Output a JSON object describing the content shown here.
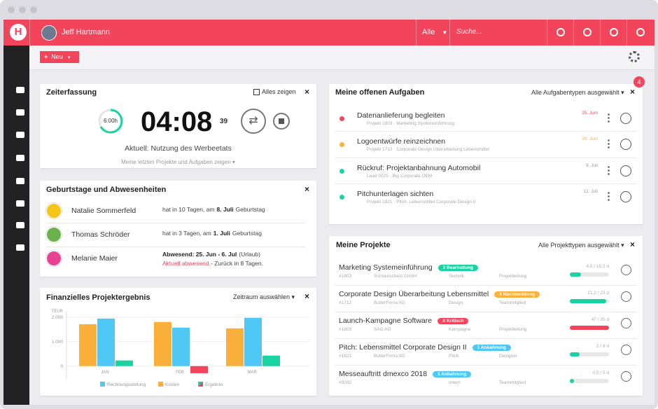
{
  "header": {
    "user": "Jeff Hartmann",
    "filter": "Alle",
    "search": "Suche..."
  },
  "toolbar": {
    "new_button": "Neu"
  },
  "time_tracking": {
    "title": "Zeiterfassung",
    "show_all": "Alles zeigen",
    "target": "6:00h",
    "time": "04:08",
    "seconds": "39",
    "current": "Aktuell: Nutzung des Werbeetats",
    "recent": "Meine letzten Projekte und Aufgaben zeigen"
  },
  "absences": {
    "title": "Geburtstage und Abwesenheiten",
    "people": [
      {
        "name": "Natalie Sommerfeld",
        "text": "hat in 10 Tagen, am",
        "highlight": "8. Juli",
        "suffix": "Geburtstag"
      },
      {
        "name": "Thomas Schröder",
        "text": "hat in 3 Tagen, am",
        "highlight": "1. Juli",
        "suffix": "Geburtstag"
      },
      {
        "name": "Melanie Maier",
        "highlight": "Abwesend: 25. Jun - 6. Jul",
        "suffix": "(Urlaub)",
        "alert": "Aktuell abwesend.",
        "note": "- Zurück in 8 Tagen."
      }
    ]
  },
  "finance": {
    "title": "Finanzielles Projektergebnis",
    "period": "Zeitraum auswählen",
    "chart": {
      "type": "bar",
      "unit": "TEUR",
      "categories": [
        "JAN",
        "FEB",
        "MAR"
      ],
      "series": [
        {
          "name": "Rechnungsstellung",
          "color": "#4fc8f5",
          "values": [
            1940,
            1570,
            1970
          ]
        },
        {
          "name": "Kosten",
          "color": "#fbb03b",
          "values": [
            1710,
            1800,
            1540
          ]
        },
        {
          "name": "Ergebnis",
          "color": "#19d4a2",
          "negative_color": "#f2455b",
          "values": [
            230,
            -290,
            430
          ]
        }
      ],
      "ylim": [
        -350,
        2250
      ],
      "yticks": [
        0,
        {
          "value": 1000,
          "label": "1.000"
        },
        {
          "value": 2000,
          "label": "2.000"
        }
      ],
      "grid": true
    }
  },
  "tasks": {
    "title": "Meine offenen Aufgaben",
    "filter": "Alle Aufgabentypen ausgewählt",
    "badge": "4",
    "items": [
      {
        "title": "Datenanlieferung begleiten",
        "meta": "Projekt 1803 · Marketing Systemeinführung",
        "date": "25. Juni",
        "color": "#f2455b",
        "date_color": "#f2455b"
      },
      {
        "title": "Logoentwürfe reinzeichnen",
        "meta": "Projekt 1712 · Corporate Design Überarbeitung Lebensmittel",
        "date": "28. Juni",
        "color": "#fbb03b",
        "date_color": "#fbb03b"
      },
      {
        "title": "Rückruf: Projektanbahnung Automobil",
        "meta": "Lead 0025 · Big Corporate OEM",
        "date": "9. Juli",
        "color": "#19d4a2",
        "date_color": "#999999"
      },
      {
        "title": "Pitchunterlagen sichten",
        "meta": "Projekt 1821 · Pitch: Lebensmittel Corporate Design II",
        "date": "12. Juli",
        "color": "#19d4a2",
        "date_color": "#999999"
      }
    ]
  },
  "projects": {
    "title": "Meine Projekte",
    "filter": "Alle Projekttypen ausgewählt",
    "items": [
      {
        "title": "Marketing Systemeinführung",
        "status": "2 Bearbeitung",
        "status_color": "#19d4a2",
        "number": "#1803",
        "company": "Sonnenschein GmbH",
        "category": "Technik",
        "role": "Projektleitung",
        "hours": "4,5 / 15,5 d",
        "progress": 29,
        "bar_color": "#19d4a2"
      },
      {
        "title": "Corporate Design Überarbeitung Lebensmittel",
        "status": "3 Nachbereitung",
        "status_color": "#fbb03b",
        "number": "#1712",
        "company": "ButterFirma AG",
        "category": "Design",
        "role": "Teammitglied",
        "hours": "21,2 / 23 d",
        "progress": 92,
        "bar_color": "#19d4a2"
      },
      {
        "title": "Launch-Kampagne Software",
        "status": "X Kritisch",
        "status_color": "#f2455b",
        "number": "#1803",
        "company": "SAG AG",
        "category": "Kampagne",
        "role": "Projektleitung",
        "hours": "47 / 35 d",
        "progress": 100,
        "bar_color": "#f2455b"
      },
      {
        "title": "Pitch: Lebensmittel Corporate Design II",
        "status": "1 Anbahnung",
        "status_color": "#4fc8f5",
        "number": "#1821",
        "company": "ButterFirma AG",
        "category": "Pitch",
        "role": "Designer",
        "hours": "2 / 8 d",
        "progress": 25,
        "bar_color": "#19d4a2"
      },
      {
        "title": "Messeauftritt dmexco 2018",
        "status": "1 Anbahnung",
        "status_color": "#4fc8f5",
        "number": "#0032",
        "category": "Intern",
        "role": "Teammitglied",
        "hours": "0,5 / 5 d",
        "progress": 10,
        "bar_color": "#19d4a2"
      }
    ]
  }
}
